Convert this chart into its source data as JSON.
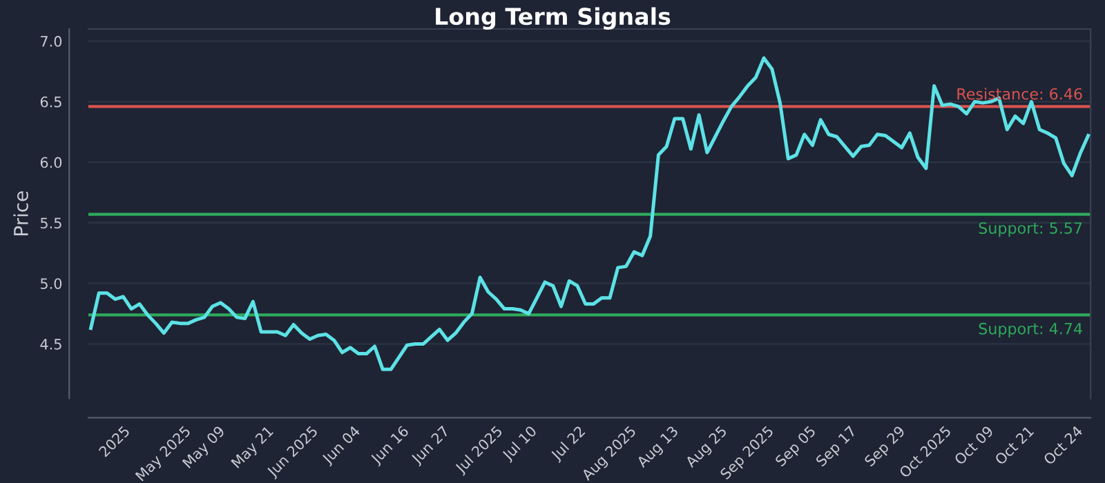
{
  "chart_data": {
    "type": "line",
    "title": "Long Term Signals",
    "ylabel": "Price",
    "categories": [
      null,
      null,
      null,
      "2025",
      null,
      null,
      null,
      null,
      null,
      "May 2025",
      null,
      null,
      null,
      null,
      "May 09",
      null,
      null,
      null,
      null,
      null,
      "May 21",
      null,
      null,
      null,
      null,
      "Jun 2025",
      null,
      null,
      null,
      null,
      null,
      "Jun 04",
      null,
      null,
      null,
      null,
      null,
      "Jun 16",
      null,
      null,
      null,
      null,
      "Jun 27",
      null,
      null,
      null,
      null,
      null,
      "Jul 2025",
      null,
      null,
      null,
      null,
      "Jul 10",
      null,
      null,
      null,
      null,
      null,
      "Jul 22",
      null,
      null,
      null,
      null,
      "Aug 2025",
      null,
      null,
      null,
      null,
      null,
      "Aug 13",
      null,
      null,
      null,
      null,
      null,
      "Aug 25",
      null,
      null,
      null,
      null,
      "Sep 2025",
      null,
      null,
      null,
      null,
      null,
      "Sep 05",
      null,
      null,
      null,
      null,
      "Sep 17",
      null,
      null,
      null,
      null,
      null,
      "Sep 29",
      null,
      null,
      null,
      null,
      "Oct 2025",
      null,
      null,
      null,
      null,
      null,
      "Oct 09",
      null,
      null,
      null,
      null,
      "Oct 21",
      null,
      null,
      null,
      null,
      null,
      "Oct 24",
      null,
      null,
      null
    ],
    "series": [
      {
        "color": "#5ce1e6",
        "values": [
          4.63,
          4.92,
          4.92,
          4.87,
          4.89,
          4.79,
          4.83,
          4.74,
          4.67,
          4.59,
          4.68,
          4.67,
          4.67,
          4.7,
          4.72,
          4.81,
          4.84,
          4.79,
          4.72,
          4.71,
          4.85,
          4.6,
          4.6,
          4.6,
          4.57,
          4.66,
          4.59,
          4.54,
          4.57,
          4.58,
          4.53,
          4.43,
          4.47,
          4.42,
          4.42,
          4.48,
          4.29,
          4.29,
          4.39,
          4.49,
          4.5,
          4.5,
          4.56,
          4.62,
          4.53,
          4.59,
          4.68,
          4.75,
          5.05,
          4.93,
          4.87,
          4.79,
          4.79,
          4.78,
          4.75,
          4.88,
          5.01,
          4.98,
          4.81,
          5.02,
          4.98,
          4.83,
          4.83,
          4.88,
          4.88,
          5.13,
          5.14,
          5.26,
          5.23,
          5.39,
          6.06,
          6.13,
          6.36,
          6.36,
          6.11,
          6.39,
          6.08,
          6.21,
          6.34,
          6.46,
          6.54,
          6.63,
          6.7,
          6.86,
          6.77,
          6.49,
          6.03,
          6.06,
          6.23,
          6.14,
          6.35,
          6.23,
          6.21,
          6.13,
          6.05,
          6.13,
          6.14,
          6.23,
          6.22,
          6.17,
          6.12,
          6.24,
          6.04,
          5.95,
          6.63,
          6.47,
          6.48,
          6.46,
          6.4,
          6.5,
          6.49,
          6.5,
          6.53,
          6.27,
          6.38,
          6.32,
          6.5,
          6.27,
          6.24,
          6.2,
          5.99,
          5.89,
          6.07,
          6.22
        ]
      }
    ],
    "ylim": [
      4.05,
      7.1
    ],
    "yticks": [
      4.5,
      {
        "value": 5,
        "label": "5.0"
      },
      5.5,
      {
        "value": 6,
        "label": "6.0"
      },
      6.5,
      {
        "value": 7,
        "label": "7.0"
      }
    ],
    "grid": "y",
    "ref_lines": [
      {
        "axis": "y",
        "value": 6.46,
        "label": "Resistance: 6.46",
        "color": "#d9534f"
      },
      {
        "axis": "y",
        "value": 5.57,
        "label": "Support: 5.57",
        "color": "#2eaa5c"
      },
      {
        "axis": "y",
        "value": 4.74,
        "label": "Support: 4.74",
        "color": "#2eaa5c"
      }
    ]
  }
}
